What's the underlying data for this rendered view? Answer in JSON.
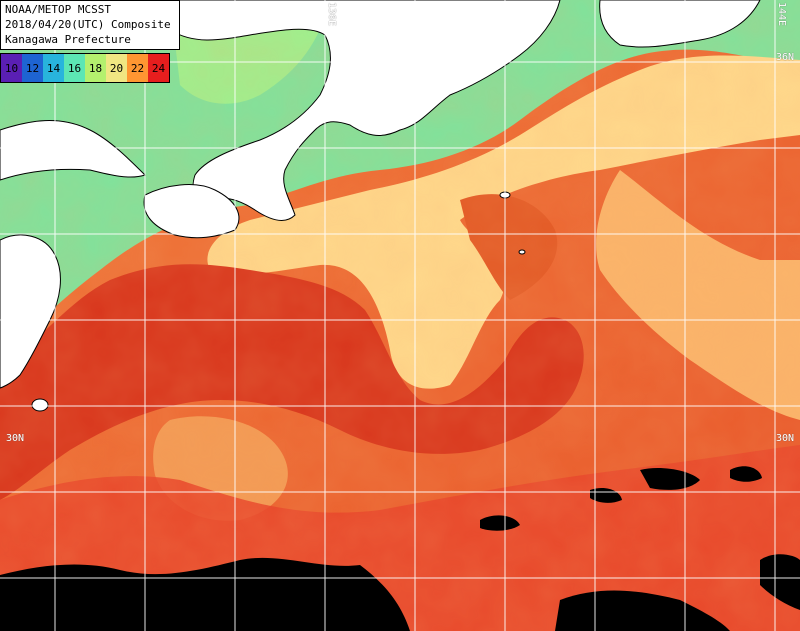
{
  "header": {
    "line1": "NOAA/METOP MCSST",
    "line2": "2018/04/20(UTC) Composite",
    "line3": "Kanagawa Prefecture"
  },
  "legend": {
    "unit_hint": "",
    "ticks": [
      "10",
      "12",
      "14",
      "16",
      "18",
      "20",
      "22",
      "24"
    ],
    "colors": [
      "#5a1fb4",
      "#1e64d2",
      "#28b4dc",
      "#5ce6b4",
      "#b4f06e",
      "#f0e682",
      "#ff9632",
      "#e61e1e"
    ]
  },
  "grid_labels": {
    "lon_136": "136E",
    "lon_144": "144E",
    "lat_36": "36N",
    "lat_30_left": "30N",
    "lat_30_right": "30N"
  },
  "palette": {
    "land": "#ffffff",
    "coastal_cool": "#8ee6a0",
    "warm_yellow": "#ffd890",
    "orange": "#f5803a",
    "kuroshio_red": "#d8321a",
    "cloud_black": "#000000",
    "grid": "#ffffff"
  }
}
